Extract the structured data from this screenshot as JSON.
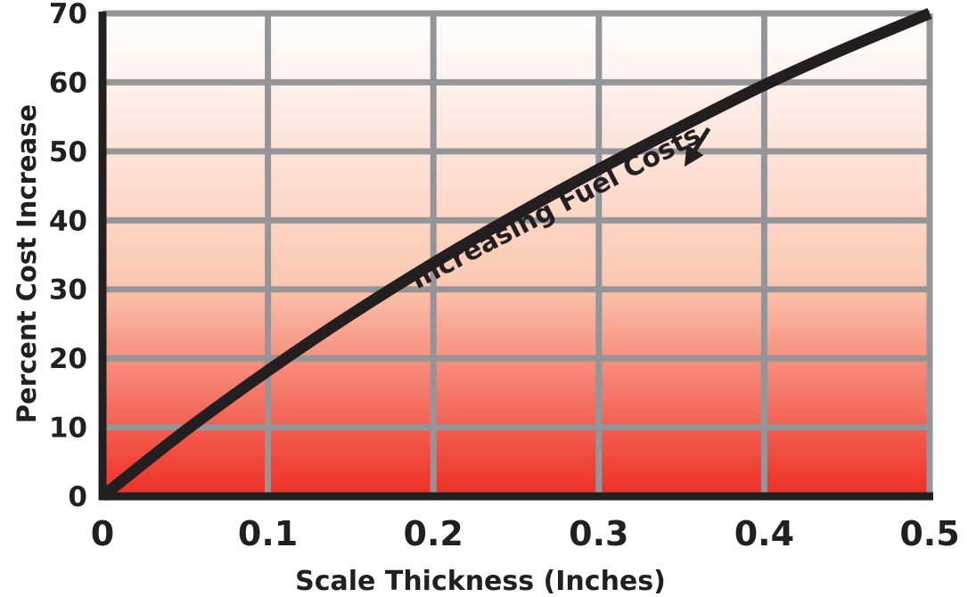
{
  "chart_data": {
    "type": "line",
    "title": "",
    "xlabel": "Scale Thickness (Inches)",
    "ylabel": "Percent Cost Increase",
    "xlim": [
      0,
      0.5
    ],
    "ylim": [
      0,
      70
    ],
    "x_ticks": [
      "0",
      "0.1",
      "0.2",
      "0.3",
      "0.4",
      "0.5"
    ],
    "y_ticks": [
      "0",
      "10",
      "20",
      "30",
      "40",
      "50",
      "60",
      "70"
    ],
    "grid": true,
    "background_gradient": {
      "top": "#ffffff",
      "bottom": "#ee2e24"
    },
    "series": [
      {
        "color": "#231f20",
        "x": [
          0,
          0.05,
          0.1,
          0.15,
          0.2,
          0.25,
          0.3,
          0.35,
          0.4,
          0.45,
          0.5
        ],
        "y": [
          0,
          9.5,
          18.2,
          26.3,
          33.8,
          40.8,
          47.4,
          53.6,
          59.6,
          65.0,
          70.0
        ]
      }
    ],
    "annotations": [
      {
        "text": "Increasing Fuel Costs",
        "x": 0.19,
        "y": 30,
        "arrow_to": [
          0.355,
          49
        ]
      }
    ]
  }
}
